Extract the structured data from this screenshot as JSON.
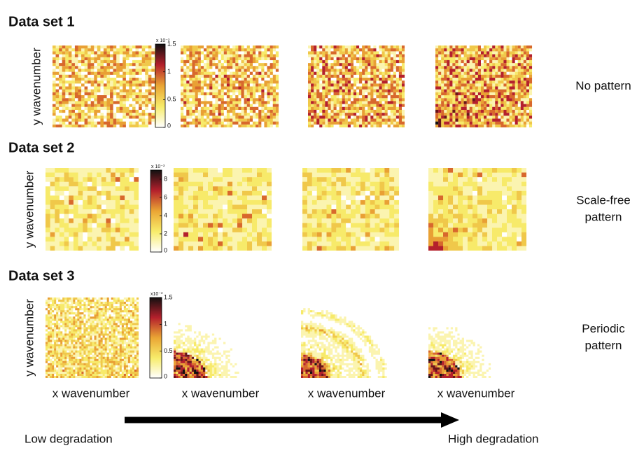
{
  "rows": [
    {
      "title": "Data set 1",
      "y_label": "y wavenumber",
      "pattern": [
        "No pattern"
      ],
      "colorbar": {
        "scale": "x 10⁻³",
        "lim": [
          0,
          1.5
        ],
        "ticks": [
          0,
          0.5,
          1,
          1.5
        ]
      }
    },
    {
      "title": "Data set 2",
      "y_label": "y wavenumber",
      "pattern": [
        "Scale-free",
        "pattern"
      ],
      "colorbar": {
        "scale": "x 10⁻³",
        "lim": [
          0,
          9
        ],
        "ticks": [
          0,
          2,
          4,
          6,
          8
        ]
      }
    },
    {
      "title": "Data set 3",
      "y_label": "y wavenumber",
      "pattern": [
        "Periodic",
        "pattern"
      ],
      "colorbar": {
        "scale": "x10⁻³",
        "lim": [
          0,
          1.5
        ],
        "ticks": [
          0,
          0.5,
          1,
          1.5
        ]
      }
    }
  ],
  "x_labels": [
    "x wavenumber",
    "x wavenumber",
    "x wavenumber",
    "x wavenumber"
  ],
  "arrow": {
    "start": "Low degradation",
    "end": "High degradation"
  }
}
